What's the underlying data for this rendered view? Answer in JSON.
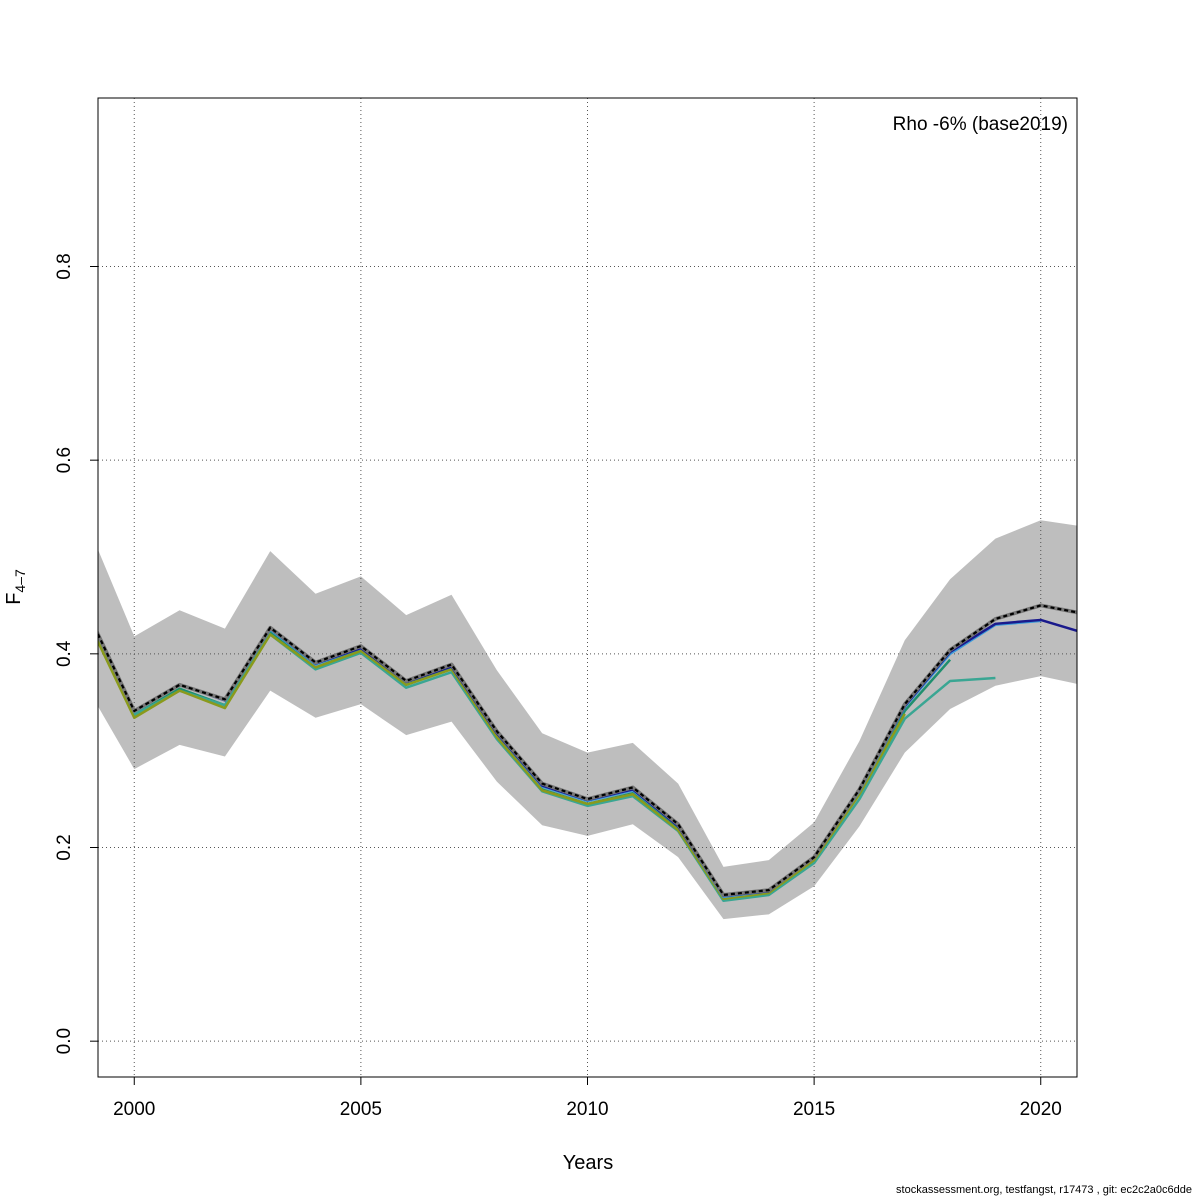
{
  "chart_data": {
    "type": "line",
    "xlabel": "Years",
    "ylabel": "F",
    "ylabel_sub": "4–7",
    "annotation": "Rho -6% (base2019)",
    "xlim": [
      1999.2,
      2020.8
    ],
    "ylim": [
      -0.037,
      0.974
    ],
    "xticks": [
      2000,
      2005,
      2010,
      2015,
      2020
    ],
    "yticks": [
      0.0,
      0.2,
      0.4,
      0.6,
      0.8
    ],
    "ytick_labels": [
      "0.0",
      "0.2",
      "0.4",
      "0.6",
      "0.8"
    ],
    "grid": true,
    "confidence_band": {
      "color": "#bebebe",
      "x": [
        1999,
        2000,
        2001,
        2002,
        2003,
        2004,
        2005,
        2006,
        2007,
        2008,
        2009,
        2010,
        2011,
        2012,
        2013,
        2014,
        2015,
        2016,
        2017,
        2018,
        2019,
        2020,
        2021
      ],
      "upper": [
        0.53,
        0.418,
        0.445,
        0.426,
        0.506,
        0.462,
        0.48,
        0.44,
        0.461,
        0.383,
        0.318,
        0.298,
        0.308,
        0.266,
        0.18,
        0.187,
        0.226,
        0.31,
        0.414,
        0.477,
        0.519,
        0.538,
        0.531
      ],
      "lower": [
        0.362,
        0.281,
        0.306,
        0.294,
        0.362,
        0.334,
        0.348,
        0.316,
        0.33,
        0.268,
        0.223,
        0.212,
        0.224,
        0.19,
        0.126,
        0.131,
        0.16,
        0.222,
        0.298,
        0.343,
        0.367,
        0.377,
        0.367
      ]
    },
    "series": [
      {
        "color": "#1f8f6e",
        "width": 2.5,
        "dashed": false,
        "x": [
          1999,
          2000,
          2001,
          2002,
          2003,
          2004,
          2005,
          2006,
          2007,
          2008,
          2009,
          2010,
          2011,
          2012,
          2013,
          2014,
          2015,
          2016,
          2017,
          2018
        ],
        "values": [
          0.436,
          0.337,
          0.364,
          0.347,
          0.422,
          0.386,
          0.404,
          0.368,
          0.385,
          0.315,
          0.26,
          0.245,
          0.256,
          0.219,
          0.147,
          0.153,
          0.188,
          0.256,
          0.341,
          0.394
        ]
      },
      {
        "color": "#3aa693",
        "width": 2.5,
        "dashed": false,
        "x": [
          1999,
          2000,
          2001,
          2002,
          2003,
          2004,
          2005,
          2006,
          2007,
          2008,
          2009,
          2010,
          2011,
          2012,
          2013,
          2014,
          2015,
          2016,
          2017,
          2018,
          2019
        ],
        "values": [
          0.434,
          0.337,
          0.362,
          0.347,
          0.42,
          0.384,
          0.401,
          0.365,
          0.381,
          0.312,
          0.258,
          0.243,
          0.253,
          0.217,
          0.145,
          0.151,
          0.184,
          0.25,
          0.333,
          0.372,
          0.375
        ]
      },
      {
        "color": "#8a9a1c",
        "width": 2.5,
        "dashed": false,
        "x": [
          1999,
          2000,
          2001,
          2002,
          2003,
          2004,
          2005,
          2006,
          2007,
          2008,
          2009,
          2010,
          2011,
          2012,
          2013,
          2014,
          2015,
          2016,
          2017
        ],
        "values": [
          0.432,
          0.334,
          0.362,
          0.344,
          0.42,
          0.386,
          0.403,
          0.368,
          0.384,
          0.314,
          0.259,
          0.245,
          0.255,
          0.218,
          0.147,
          0.153,
          0.187,
          0.255,
          0.338
        ]
      },
      {
        "color": "#3a9ad9",
        "width": 2.5,
        "dashed": false,
        "x": [
          1999,
          2000,
          2001,
          2002,
          2003,
          2004,
          2005,
          2006,
          2007,
          2008,
          2009,
          2010,
          2011,
          2012,
          2013,
          2014,
          2015,
          2016,
          2017,
          2018,
          2019,
          2020
        ],
        "values": [
          0.44,
          0.34,
          0.368,
          0.352,
          0.425,
          0.389,
          0.406,
          0.371,
          0.387,
          0.318,
          0.263,
          0.248,
          0.259,
          0.222,
          0.149,
          0.155,
          0.19,
          0.258,
          0.345,
          0.4,
          0.43,
          0.434
        ]
      },
      {
        "color": "#1a1a8c",
        "width": 2.5,
        "dashed": false,
        "x": [
          1999,
          2000,
          2001,
          2002,
          2003,
          2004,
          2005,
          2006,
          2007,
          2008,
          2009,
          2010,
          2011,
          2012,
          2013,
          2014,
          2015,
          2016,
          2017,
          2018,
          2019,
          2020,
          2021
        ],
        "values": [
          0.44,
          0.341,
          0.368,
          0.352,
          0.426,
          0.39,
          0.406,
          0.371,
          0.387,
          0.318,
          0.264,
          0.249,
          0.26,
          0.222,
          0.15,
          0.155,
          0.19,
          0.259,
          0.346,
          0.402,
          0.431,
          0.435,
          0.421
        ]
      },
      {
        "color": "#000000",
        "width": 2.2,
        "dashed": true,
        "x": [
          1999,
          2000,
          2001,
          2002,
          2003,
          2004,
          2005,
          2006,
          2007,
          2008,
          2009,
          2010,
          2011,
          2012,
          2013,
          2014,
          2015,
          2016,
          2017,
          2018,
          2019,
          2020,
          2021
        ],
        "values": [
          0.44,
          0.341,
          0.368,
          0.353,
          0.427,
          0.391,
          0.408,
          0.372,
          0.389,
          0.32,
          0.266,
          0.25,
          0.262,
          0.224,
          0.151,
          0.156,
          0.19,
          0.26,
          0.348,
          0.404,
          0.436,
          0.45,
          0.441
        ]
      }
    ]
  },
  "footer": "stockassessment.org, testfangst, r17473 , git: ec2c2a0c6dde"
}
